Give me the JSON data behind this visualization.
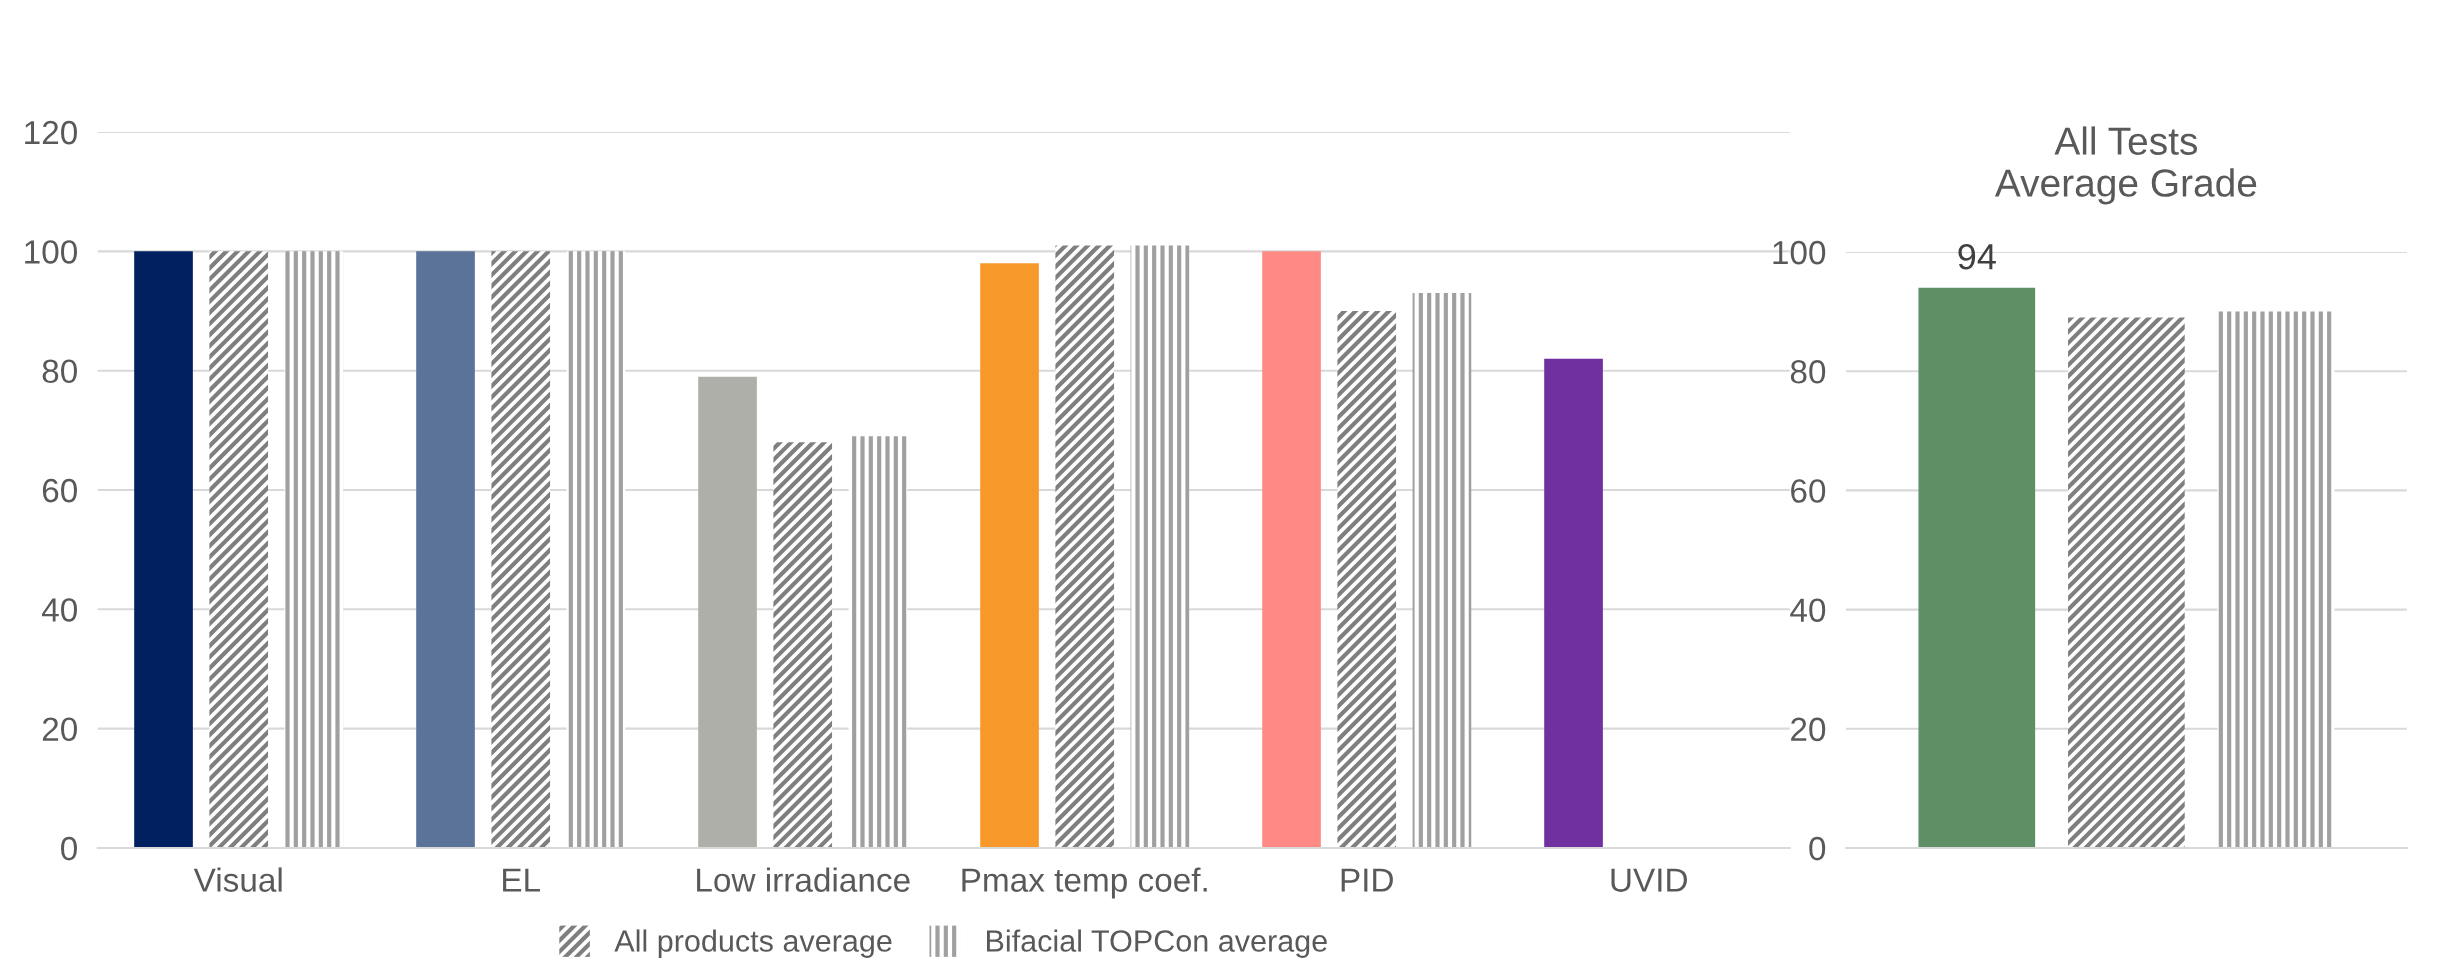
{
  "chart_data": [
    {
      "type": "bar",
      "categories": [
        "Visual",
        "EL",
        "Low irradiance",
        "Pmax temp coef.",
        "PID",
        "UVID"
      ],
      "ylim": [
        0,
        120
      ],
      "yticks": [
        0,
        20,
        40,
        60,
        80,
        100,
        120
      ],
      "grid": "y",
      "legend": "bottom",
      "series": [
        {
          "colors": [
            "#002060",
            "#5b7399",
            "#afafa9",
            "#f7982b",
            "#ff8a85",
            "#7030a0"
          ],
          "values": [
            100,
            100,
            79,
            98,
            100,
            82
          ]
        },
        {
          "name": "All products average",
          "color": "#7f7f7f",
          "values": [
            100,
            100,
            68,
            101,
            90,
            null
          ]
        },
        {
          "name": "Bifacial TOPCon average",
          "color": "#a0a0a0",
          "values": [
            100,
            100,
            69,
            101,
            93,
            null
          ]
        }
      ]
    },
    {
      "type": "bar",
      "title": "All Tests\nAverage Grade",
      "categories": [
        null
      ],
      "ylim": [
        0,
        100
      ],
      "yticks": [
        0,
        20,
        40,
        60,
        80,
        100
      ],
      "grid": "y",
      "series": [
        {
          "color": "#5f9065",
          "values": [
            94
          ],
          "value_labels": [
            "94"
          ]
        },
        {
          "color": "#7f7f7f",
          "values": [
            89
          ]
        },
        {
          "color": "#a0a0a0",
          "values": [
            90
          ]
        }
      ]
    }
  ]
}
